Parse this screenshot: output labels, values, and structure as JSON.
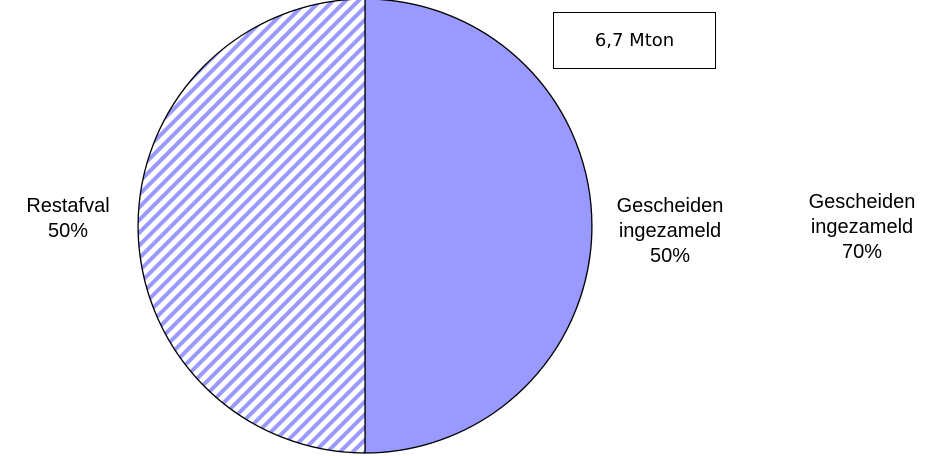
{
  "chart_data": [
    {
      "type": "pie",
      "categories": [
        "Gescheiden ingezameld",
        "Restafval"
      ],
      "values": [
        50,
        50
      ],
      "value_labels": [
        "50%",
        "50%"
      ],
      "colors": [
        "#9999ff",
        "#9999ff"
      ],
      "hatched": [
        false,
        true
      ],
      "annotation": "6,7 Mton"
    },
    {
      "type": "pie",
      "categories": [
        "Gescheiden ingezameld"
      ],
      "values": [
        70
      ],
      "value_labels": [
        "70%"
      ],
      "colors": [
        "#993366"
      ],
      "hatched": [
        false
      ]
    }
  ]
}
